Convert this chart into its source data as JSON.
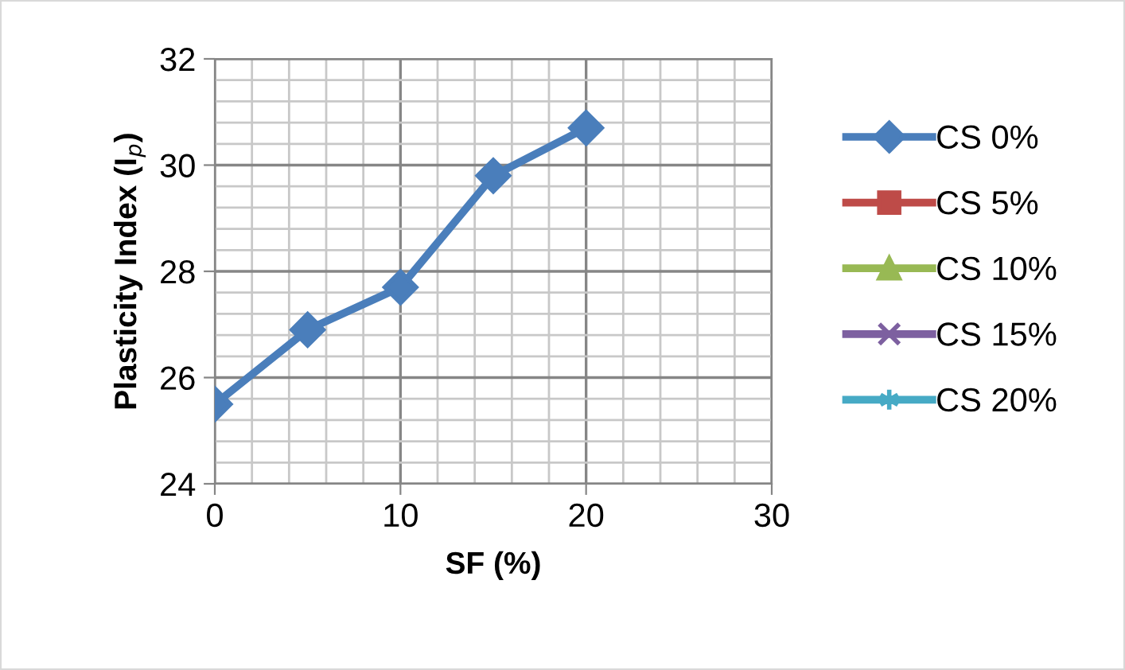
{
  "chart_data": {
    "type": "line",
    "xlabel": "SF (%)",
    "ylabel": "Plasticity Index (I$_{p}$)",
    "x": [
      0,
      5,
      10,
      15,
      20
    ],
    "series": [
      {
        "name": "CS 0%",
        "color": "#4a7ebb",
        "marker": "diamond",
        "values": [
          25.5,
          26.9,
          27.7,
          29.8,
          30.7
        ]
      },
      {
        "name": "CS 5%",
        "color": "#be4b48",
        "marker": "square",
        "values": [
          null,
          null,
          null,
          null,
          null
        ]
      },
      {
        "name": "CS 10%",
        "color": "#98b954",
        "marker": "triangle",
        "values": [
          null,
          null,
          null,
          null,
          null
        ]
      },
      {
        "name": "CS 15%",
        "color": "#7d60a0",
        "marker": "cross",
        "values": [
          null,
          null,
          null,
          null,
          null
        ]
      },
      {
        "name": "CS 20%",
        "color": "#46aac5",
        "marker": "star",
        "values": [
          null,
          null,
          null,
          null,
          null
        ]
      }
    ],
    "xlim": [
      0,
      30
    ],
    "xticks": [
      0,
      {
        "value": 2,
        "label": null
      },
      {
        "value": 4,
        "label": null
      },
      {
        "value": 6,
        "label": null
      },
      {
        "value": 8,
        "label": null
      },
      10,
      {
        "value": 12,
        "label": null
      },
      {
        "value": 14,
        "label": null
      },
      {
        "value": 16,
        "label": null
      },
      {
        "value": 18,
        "label": null
      },
      20,
      {
        "value": 22,
        "label": null
      },
      {
        "value": 24,
        "label": null
      },
      {
        "value": 26,
        "label": null
      },
      {
        "value": 28,
        "label": null
      },
      30
    ],
    "ylim": [
      24,
      32
    ],
    "yticks": [
      24,
      {
        "value": 24.4,
        "label": null
      },
      {
        "value": 24.8,
        "label": null
      },
      {
        "value": 25.2,
        "label": null
      },
      {
        "value": 25.6,
        "label": null
      },
      26,
      {
        "value": 26.4,
        "label": null
      },
      {
        "value": 26.8,
        "label": null
      },
      {
        "value": 27.2,
        "label": null
      },
      {
        "value": 27.6,
        "label": null
      },
      28,
      {
        "value": 28.4,
        "label": null
      },
      {
        "value": 28.8,
        "label": null
      },
      {
        "value": 29.2,
        "label": null
      },
      {
        "value": 29.6,
        "label": null
      },
      30,
      {
        "value": 30.4,
        "label": null
      },
      {
        "value": 30.8,
        "label": null
      },
      {
        "value": 31.2,
        "label": null
      },
      {
        "value": 31.6,
        "label": null
      },
      32
    ],
    "grid": true,
    "legend": "right",
    "line_style": "solid"
  }
}
